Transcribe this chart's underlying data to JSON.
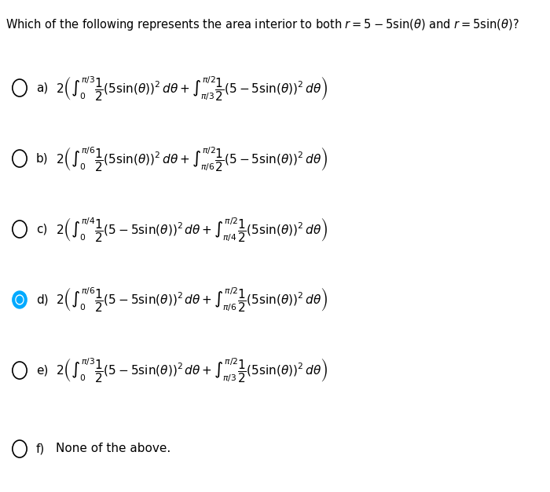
{
  "title": "Which of the following represents the area interior to both $r = 5 - 5\\sin(\\theta)$ and $r = 5\\sin(\\theta)$?",
  "bg_color": "#ffffff",
  "options": [
    {
      "label": "a)",
      "radio_filled": false,
      "radio_color": "#000000",
      "formula": "$2\\left(\\int_0^{\\pi/3}\\dfrac{1}{2}(5\\sin(\\theta))^2\\,d\\theta + \\int_{\\pi/3}^{\\pi/2}\\dfrac{1}{2}(5 - 5\\sin(\\theta))^2\\,d\\theta\\right)$"
    },
    {
      "label": "b)",
      "radio_filled": false,
      "radio_color": "#000000",
      "formula": "$2\\left(\\int_0^{\\pi/6}\\dfrac{1}{2}(5\\sin(\\theta))^2\\,d\\theta + \\int_{\\pi/6}^{\\pi/2}\\dfrac{1}{2}(5 - 5\\sin(\\theta))^2\\,d\\theta\\right)$"
    },
    {
      "label": "c)",
      "radio_filled": false,
      "radio_color": "#000000",
      "formula": "$2\\left(\\int_0^{\\pi/4}\\dfrac{1}{2}(5 - 5\\sin(\\theta))^2\\,d\\theta + \\int_{\\pi/4}^{\\pi/2}\\dfrac{1}{2}(5\\sin(\\theta))^2\\,d\\theta\\right)$"
    },
    {
      "label": "d)",
      "radio_filled": true,
      "radio_color": "#00aaff",
      "formula": "$2\\left(\\int_0^{\\pi/6}\\dfrac{1}{2}(5 - 5\\sin(\\theta))^2\\,d\\theta + \\int_{\\pi/6}^{\\pi/2}\\dfrac{1}{2}(5\\sin(\\theta))^2\\,d\\theta\\right)$"
    },
    {
      "label": "e)",
      "radio_filled": false,
      "radio_color": "#000000",
      "formula": "$2\\left(\\int_0^{\\pi/3}\\dfrac{1}{2}(5 - 5\\sin(\\theta))^2\\,d\\theta + \\int_{\\pi/3}^{\\pi/2}\\dfrac{1}{2}(5\\sin(\\theta))^2\\,d\\theta\\right)$"
    },
    {
      "label": "f)",
      "radio_filled": false,
      "radio_color": "#000000",
      "formula": "None of the above."
    }
  ]
}
